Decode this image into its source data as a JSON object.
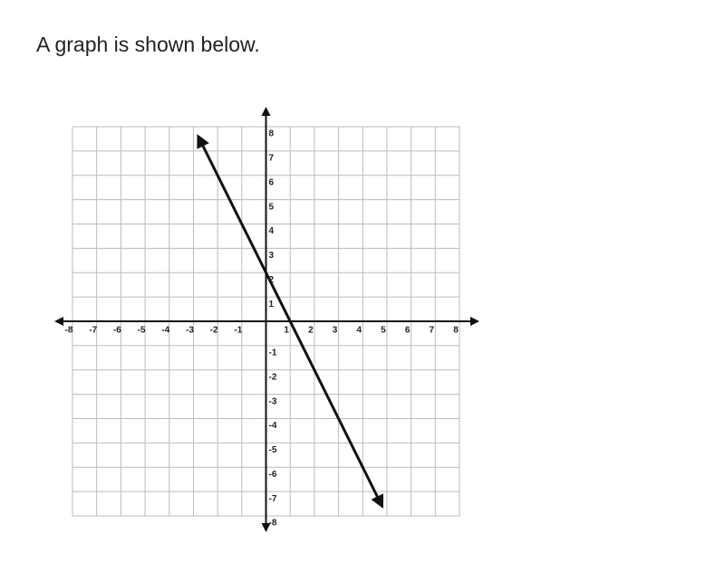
{
  "question": "A graph is shown below.",
  "chart_data": {
    "type": "line",
    "x": [
      -2.8,
      4.8
    ],
    "series": [
      {
        "color": "#111111",
        "values": [
          7.6,
          -7.6
        ]
      }
    ],
    "xlim": [
      -8,
      8
    ],
    "ylim": [
      -8,
      8
    ],
    "xticks": [
      -8,
      -7,
      -6,
      -5,
      -4,
      -3,
      -2,
      -1,
      1,
      2,
      3,
      4,
      5,
      6,
      7,
      8
    ],
    "yticks": [
      -8,
      -7,
      -6,
      -5,
      -4,
      -3,
      -2,
      -1,
      1,
      2,
      3,
      4,
      5,
      6,
      7,
      8
    ],
    "grid": true
  }
}
